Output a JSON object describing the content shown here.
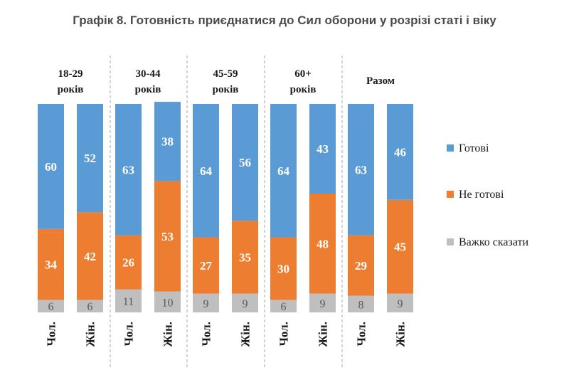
{
  "title": "Графік 8. Готовність приєднатися до Сил оборони у розрізі статі і віку",
  "chart_data": {
    "type": "bar",
    "stacked": true,
    "percent": true,
    "title": "Графік 8. Готовність приєднатися до Сил оборони у розрізі статі і віку",
    "groups": [
      {
        "label": [
          "18-29",
          "років"
        ],
        "bars": [
          {
            "sex": "Чол.",
            "ready": 60,
            "not_ready": 34,
            "hard_to_say": 6
          },
          {
            "sex": "Жін.",
            "ready": 52,
            "not_ready": 42,
            "hard_to_say": 6
          }
        ]
      },
      {
        "label": [
          "30-44",
          "років"
        ],
        "bars": [
          {
            "sex": "Чол.",
            "ready": 63,
            "not_ready": 26,
            "hard_to_say": 11
          },
          {
            "sex": "Жін.",
            "ready": 38,
            "not_ready": 53,
            "hard_to_say": 10
          }
        ]
      },
      {
        "label": [
          "45-59",
          "років"
        ],
        "bars": [
          {
            "sex": "Чол.",
            "ready": 64,
            "not_ready": 27,
            "hard_to_say": 9
          },
          {
            "sex": "Жін.",
            "ready": 56,
            "not_ready": 35,
            "hard_to_say": 9
          }
        ]
      },
      {
        "label": [
          "60+",
          "років"
        ],
        "bars": [
          {
            "sex": "Чол.",
            "ready": 64,
            "not_ready": 30,
            "hard_to_say": 6
          },
          {
            "sex": "Жін.",
            "ready": 43,
            "not_ready": 48,
            "hard_to_say": 9
          }
        ]
      },
      {
        "label": [
          "Разом"
        ],
        "bars": [
          {
            "sex": "Чол.",
            "ready": 63,
            "not_ready": 29,
            "hard_to_say": 8
          },
          {
            "sex": "Жін.",
            "ready": 46,
            "not_ready": 45,
            "hard_to_say": 9
          }
        ]
      }
    ],
    "series": [
      {
        "key": "ready",
        "name": "Готові",
        "color": "#5b9bd5"
      },
      {
        "key": "not_ready",
        "name": "Не готові",
        "color": "#ed7d31"
      },
      {
        "key": "hard_to_say",
        "name": "Важко сказати",
        "color": "#bfbfbf"
      }
    ],
    "legend_position": "right"
  }
}
